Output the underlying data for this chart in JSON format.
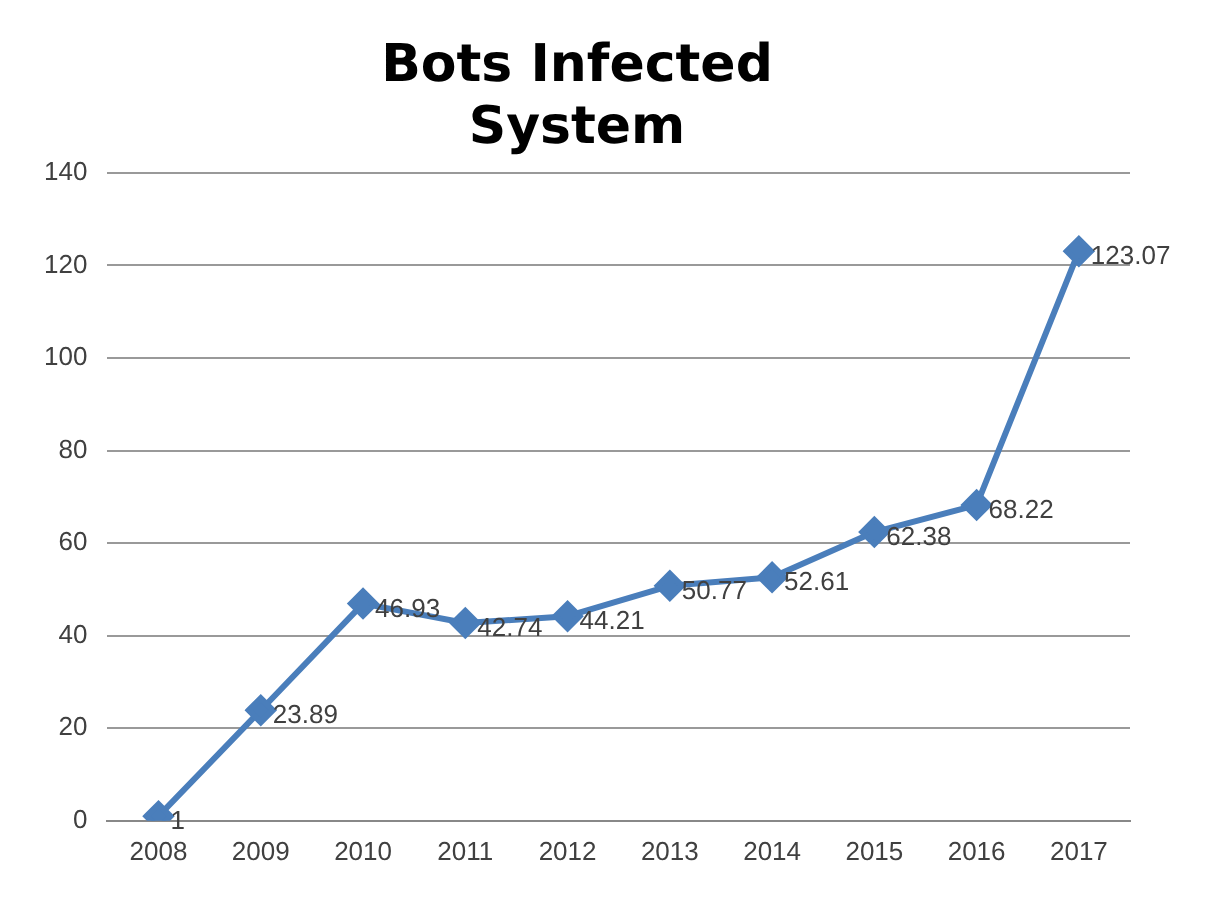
{
  "chart_data": {
    "type": "line",
    "title": [
      "Bots Infected",
      "System"
    ],
    "categories": [
      "2008",
      "2009",
      "2010",
      "2011",
      "2012",
      "2013",
      "2014",
      "2015",
      "2016",
      "2017"
    ],
    "series": [
      {
        "color": "#4a7ebb",
        "values": [
          1,
          23.89,
          46.93,
          42.74,
          44.21,
          50.77,
          52.61,
          62.38,
          68.22,
          123.07
        ]
      }
    ],
    "ylim": [
      0,
      140
    ],
    "yticks": [
      0,
      20,
      40,
      60,
      80,
      100,
      120,
      140
    ],
    "grid": "y",
    "marker": "diamond",
    "data_labels": true,
    "legend": false
  }
}
